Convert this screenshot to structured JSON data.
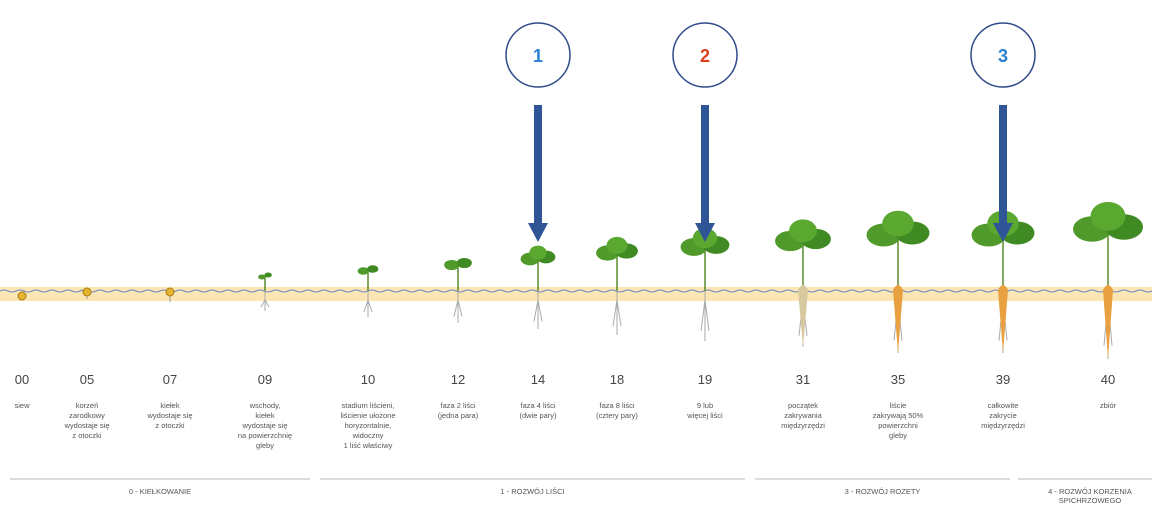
{
  "stages": [
    {
      "code": "00",
      "description": [
        "siew"
      ]
    },
    {
      "code": "05",
      "description": [
        "korzeń",
        "zarodkowy",
        "wydostaje się",
        "z otoczki"
      ]
    },
    {
      "code": "07",
      "description": [
        "kiełek",
        "wydostaje się",
        "z otoczki"
      ]
    },
    {
      "code": "09",
      "description": [
        "wschody,",
        "kiełek",
        "wydostaje się",
        "na powierzchnię",
        "gleby"
      ]
    },
    {
      "code": "10",
      "description": [
        "stadium liścieni,",
        "liścienie ułożone",
        "horyzontalnie,",
        "widoczny",
        "1 liść właściwy"
      ]
    },
    {
      "code": "12",
      "description": [
        "faza 2 liści",
        "(jedna para)"
      ]
    },
    {
      "code": "14",
      "description": [
        "faza 4 liści",
        "(dwie pary)"
      ]
    },
    {
      "code": "18",
      "description": [
        "faza 8 liści",
        "(cztery pary)"
      ]
    },
    {
      "code": "19",
      "description": [
        "9 lub",
        "więcej liści"
      ]
    },
    {
      "code": "31",
      "description": [
        "początek",
        "zakrywania",
        "międzyrzędzi"
      ]
    },
    {
      "code": "35",
      "description": [
        "liście",
        "zakrywają 50%",
        "powierzchni",
        "gleby"
      ]
    },
    {
      "code": "39",
      "description": [
        "całkowite",
        "zakrycie",
        "międzyrzędzi"
      ]
    },
    {
      "code": "40",
      "description": [
        "zbiór"
      ]
    }
  ],
  "markers": [
    {
      "label": "1",
      "color": "#2a7fd0"
    },
    {
      "label": "2",
      "color": "#e0401f"
    },
    {
      "label": "3",
      "color": "#2a7fd0"
    }
  ],
  "phases": [
    {
      "label": [
        "0 - KIEŁKOWANIE"
      ]
    },
    {
      "label": [
        "1 - ROZWÓJ LIŚCI"
      ]
    },
    {
      "label": [
        "3 - ROZWÓJ ROZETY"
      ]
    },
    {
      "label": [
        "4 - ROZWÓJ KORZENIA",
        "SPICHRZOWEGO"
      ]
    }
  ]
}
